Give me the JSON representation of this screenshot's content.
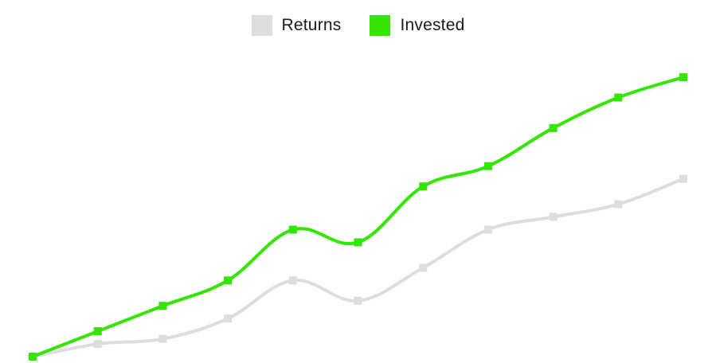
{
  "chart_data": {
    "type": "line",
    "x": [
      1,
      2,
      3,
      4,
      5,
      6,
      7,
      8,
      9,
      10,
      11
    ],
    "ylim": [
      0,
      110
    ],
    "grid": false,
    "legend_position": "top-center",
    "series": [
      {
        "name": "Returns",
        "color": "#dddddd",
        "values": [
          0,
          5,
          7,
          15,
          30,
          22,
          35,
          50,
          55,
          60,
          70
        ]
      },
      {
        "name": "Invested",
        "color": "#33e600",
        "values": [
          0,
          10,
          20,
          30,
          50,
          45,
          67,
          75,
          90,
          102,
          110
        ]
      }
    ]
  }
}
